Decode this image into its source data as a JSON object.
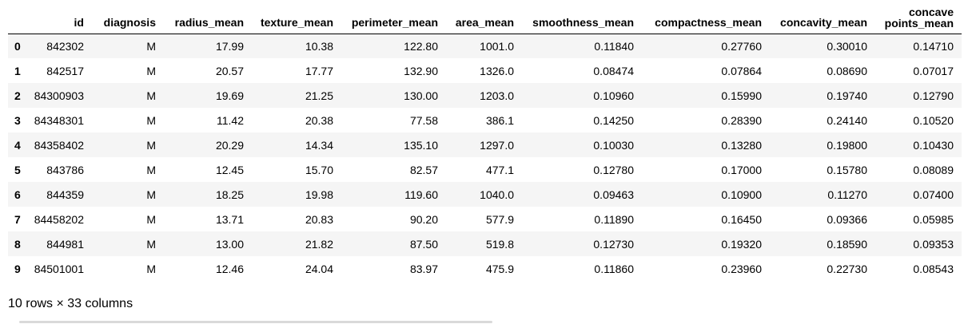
{
  "table": {
    "columns": [
      "id",
      "diagnosis",
      "radius_mean",
      "texture_mean",
      "perimeter_mean",
      "area_mean",
      "smoothness_mean",
      "compactness_mean",
      "concavity_mean",
      "concave points_mean"
    ],
    "rows": [
      {
        "index": "0",
        "cells": [
          "842302",
          "M",
          "17.99",
          "10.38",
          "122.80",
          "1001.0",
          "0.11840",
          "0.27760",
          "0.30010",
          "0.14710"
        ]
      },
      {
        "index": "1",
        "cells": [
          "842517",
          "M",
          "20.57",
          "17.77",
          "132.90",
          "1326.0",
          "0.08474",
          "0.07864",
          "0.08690",
          "0.07017"
        ]
      },
      {
        "index": "2",
        "cells": [
          "84300903",
          "M",
          "19.69",
          "21.25",
          "130.00",
          "1203.0",
          "0.10960",
          "0.15990",
          "0.19740",
          "0.12790"
        ]
      },
      {
        "index": "3",
        "cells": [
          "84348301",
          "M",
          "11.42",
          "20.38",
          "77.58",
          "386.1",
          "0.14250",
          "0.28390",
          "0.24140",
          "0.10520"
        ]
      },
      {
        "index": "4",
        "cells": [
          "84358402",
          "M",
          "20.29",
          "14.34",
          "135.10",
          "1297.0",
          "0.10030",
          "0.13280",
          "0.19800",
          "0.10430"
        ]
      },
      {
        "index": "5",
        "cells": [
          "843786",
          "M",
          "12.45",
          "15.70",
          "82.57",
          "477.1",
          "0.12780",
          "0.17000",
          "0.15780",
          "0.08089"
        ]
      },
      {
        "index": "6",
        "cells": [
          "844359",
          "M",
          "18.25",
          "19.98",
          "119.60",
          "1040.0",
          "0.09463",
          "0.10900",
          "0.11270",
          "0.07400"
        ]
      },
      {
        "index": "7",
        "cells": [
          "84458202",
          "M",
          "13.71",
          "20.83",
          "90.20",
          "577.9",
          "0.11890",
          "0.16450",
          "0.09366",
          "0.05985"
        ]
      },
      {
        "index": "8",
        "cells": [
          "844981",
          "M",
          "13.00",
          "21.82",
          "87.50",
          "519.8",
          "0.12730",
          "0.19320",
          "0.18590",
          "0.09353"
        ]
      },
      {
        "index": "9",
        "cells": [
          "84501001",
          "M",
          "12.46",
          "24.04",
          "83.97",
          "475.9",
          "0.11860",
          "0.23960",
          "0.22730",
          "0.08543"
        ]
      }
    ]
  },
  "footer": {
    "summary": "10 rows × 33 columns"
  },
  "colors": {
    "stripe": "#f5f5f5",
    "scrollbar": "#d9d9d9"
  }
}
